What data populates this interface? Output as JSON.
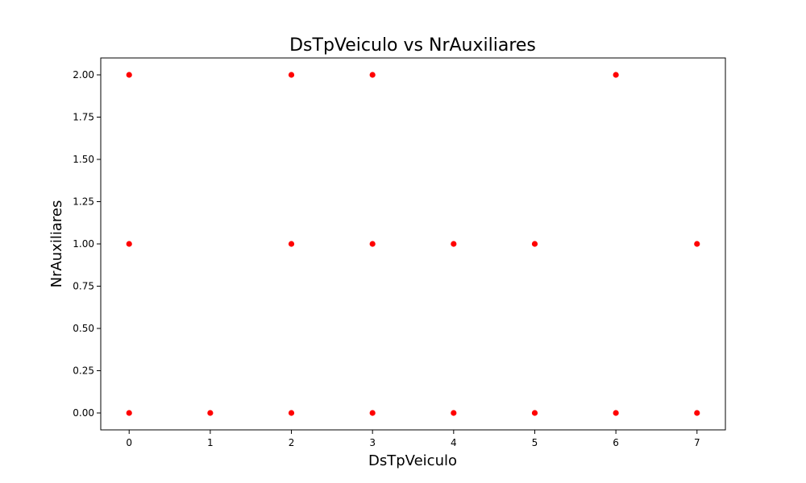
{
  "chart_data": {
    "type": "scatter",
    "title": "DsTpVeiculo vs NrAuxiliares",
    "xlabel": "DsTpVeiculo",
    "ylabel": "NrAuxiliares",
    "xlim": [
      -0.35,
      7.35
    ],
    "ylim": [
      -0.1,
      2.1
    ],
    "x_ticks": [
      0,
      1,
      2,
      3,
      4,
      5,
      6,
      7
    ],
    "x_tick_labels": [
      "0",
      "1",
      "2",
      "3",
      "4",
      "5",
      "6",
      "7"
    ],
    "y_ticks": [
      0.0,
      0.25,
      0.5,
      0.75,
      1.0,
      1.25,
      1.5,
      1.75,
      2.0
    ],
    "y_tick_labels": [
      "0.00",
      "0.25",
      "0.50",
      "0.75",
      "1.00",
      "1.25",
      "1.50",
      "1.75",
      "2.00"
    ],
    "grid": false,
    "legend": "none",
    "point_color": "#ff0000",
    "series": [
      {
        "points": [
          {
            "x": 0,
            "y": 2
          },
          {
            "x": 2,
            "y": 2
          },
          {
            "x": 3,
            "y": 2
          },
          {
            "x": 6,
            "y": 2
          },
          {
            "x": 0,
            "y": 1
          },
          {
            "x": 2,
            "y": 1
          },
          {
            "x": 3,
            "y": 1
          },
          {
            "x": 4,
            "y": 1
          },
          {
            "x": 5,
            "y": 1
          },
          {
            "x": 7,
            "y": 1
          },
          {
            "x": 0,
            "y": 0
          },
          {
            "x": 1,
            "y": 0
          },
          {
            "x": 2,
            "y": 0
          },
          {
            "x": 3,
            "y": 0
          },
          {
            "x": 4,
            "y": 0
          },
          {
            "x": 5,
            "y": 0
          },
          {
            "x": 6,
            "y": 0
          },
          {
            "x": 7,
            "y": 0
          }
        ]
      }
    ]
  }
}
